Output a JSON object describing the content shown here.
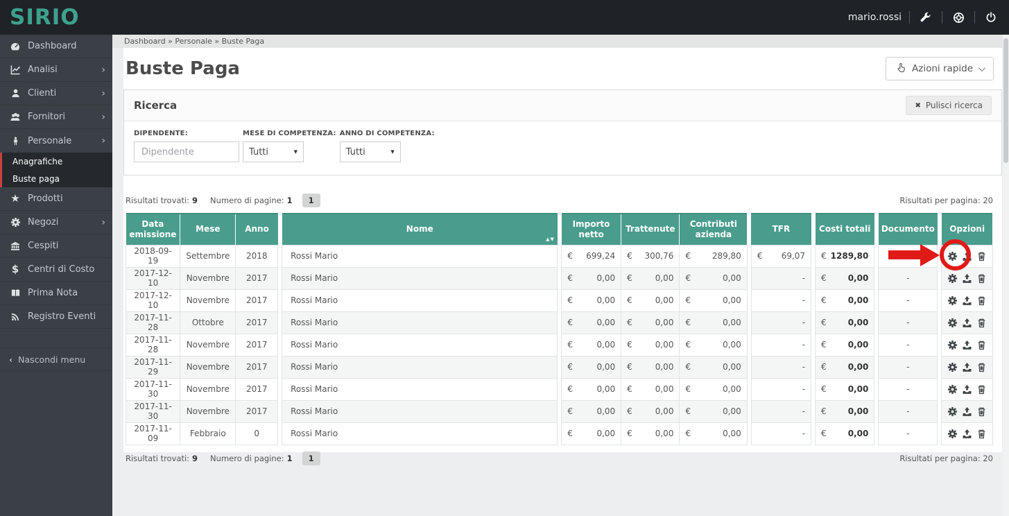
{
  "colors": {
    "brand_teal": "#3EA18D",
    "table_header": "#4A9D8D",
    "sidebar_accent_red": "#C8423F",
    "annotation_red": "#E01A17",
    "topbar_bg": "#1F2327",
    "sidebar_bg": "#3A4045"
  },
  "topbar": {
    "logo": "SIRIO",
    "username": "mario.rossi"
  },
  "breadcrumb": "Dashboard » Personale » Buste Paga",
  "icons": {
    "chevron": "›",
    "collapse": "‹",
    "dropdown": "▼",
    "clear": "✖",
    "sort": "▲▼",
    "star": "★",
    "dollar": "$"
  },
  "sidebar": {
    "items": [
      {
        "label": "Dashboard",
        "icon": "gauge",
        "chevron": false
      },
      {
        "label": "Analisi",
        "icon": "chart",
        "chevron": true
      },
      {
        "label": "Clienti",
        "icon": "user",
        "chevron": true
      },
      {
        "label": "Fornitori",
        "icon": "users",
        "chevron": true
      },
      {
        "label": "Personale",
        "icon": "person",
        "chevron": true
      },
      {
        "label": "Prodotti",
        "icon": "star",
        "chevron": false
      },
      {
        "label": "Negozi",
        "icon": "gear",
        "chevron": true
      },
      {
        "label": "Cespiti",
        "icon": "bank",
        "chevron": false
      },
      {
        "label": "Centri di Costo",
        "icon": "dollar",
        "chevron": false
      },
      {
        "label": "Prima Nota",
        "icon": "book",
        "chevron": false
      },
      {
        "label": "Registro Eventi",
        "icon": "rss",
        "chevron": false
      }
    ],
    "submenu": {
      "parent": "Personale",
      "items": [
        {
          "label": "Anagrafiche"
        },
        {
          "label": "Buste paga"
        }
      ]
    },
    "hide_label": "Nascondi menu"
  },
  "page": {
    "title": "Buste Paga",
    "quick_actions_label": "Azioni rapide"
  },
  "search": {
    "panel_title": "Ricerca",
    "clear_label": "Pulisci ricerca",
    "employee_label": "DIPENDENTE:",
    "employee_placeholder": "Dipendente",
    "employee_value": "",
    "month_label": "MESE DI COMPETENZA:",
    "month_value": "Tutti",
    "year_label": "ANNO DI COMPETENZA:",
    "year_value": "Tutti"
  },
  "results": {
    "found_label": "Risultati trovati:",
    "found_value": "9",
    "pages_label": "Numero di pagine:",
    "pages_value": "1",
    "page_button": "1",
    "per_page_label": "Risultati per pagina:",
    "per_page_value": "20"
  },
  "table": {
    "currency": "€",
    "action_icons": [
      "settings",
      "upload",
      "delete"
    ],
    "groups": [
      {
        "columns": [
          {
            "key": "date",
            "label": "Data emissione"
          },
          {
            "key": "month",
            "label": "Mese"
          },
          {
            "key": "year",
            "label": "Anno"
          }
        ]
      },
      {
        "columns": [
          {
            "key": "name",
            "label": "Nome",
            "sortable": true
          }
        ]
      },
      {
        "columns": [
          {
            "key": "net",
            "label": "Importo netto",
            "money": true
          },
          {
            "key": "withheld",
            "label": "Trattenute",
            "money": true
          },
          {
            "key": "contrib",
            "label": "Contributi azienda",
            "money": true
          }
        ]
      },
      {
        "columns": [
          {
            "key": "tfr",
            "label": "TFR",
            "money": true
          }
        ]
      },
      {
        "columns": [
          {
            "key": "total",
            "label": "Costi totali",
            "money": true,
            "bold": true
          }
        ]
      },
      {
        "columns": [
          {
            "key": "doc",
            "label": "Documento"
          }
        ]
      },
      {
        "columns": [
          {
            "key": "actions",
            "label": "Opzioni",
            "actions": true
          }
        ]
      }
    ],
    "rows": [
      {
        "date": "2018-09-19",
        "month": "Settembre",
        "year": "2018",
        "name": "Rossi Mario",
        "net": "699,24",
        "withheld": "300,76",
        "contrib": "289,80",
        "tfr": "69,07",
        "total": "1289,80",
        "doc": ""
      },
      {
        "date": "2017-12-10",
        "month": "Novembre",
        "year": "2017",
        "name": "Rossi Mario",
        "net": "0,00",
        "withheld": "0,00",
        "contrib": "0,00",
        "tfr": "-",
        "total": "0,00",
        "doc": "-"
      },
      {
        "date": "2017-12-10",
        "month": "Novembre",
        "year": "2017",
        "name": "Rossi Mario",
        "net": "0,00",
        "withheld": "0,00",
        "contrib": "0,00",
        "tfr": "-",
        "total": "0,00",
        "doc": "-"
      },
      {
        "date": "2017-11-28",
        "month": "Ottobre",
        "year": "2017",
        "name": "Rossi Mario",
        "net": "0,00",
        "withheld": "0,00",
        "contrib": "0,00",
        "tfr": "-",
        "total": "0,00",
        "doc": "-"
      },
      {
        "date": "2017-11-28",
        "month": "Novembre",
        "year": "2017",
        "name": "Rossi Mario",
        "net": "0,00",
        "withheld": "0,00",
        "contrib": "0,00",
        "tfr": "-",
        "total": "0,00",
        "doc": "-"
      },
      {
        "date": "2017-11-29",
        "month": "Novembre",
        "year": "2017",
        "name": "Rossi Mario",
        "net": "0,00",
        "withheld": "0,00",
        "contrib": "0,00",
        "tfr": "-",
        "total": "0,00",
        "doc": "-"
      },
      {
        "date": "2017-11-30",
        "month": "Novembre",
        "year": "2017",
        "name": "Rossi Mario",
        "net": "0,00",
        "withheld": "0,00",
        "contrib": "0,00",
        "tfr": "-",
        "total": "0,00",
        "doc": "-"
      },
      {
        "date": "2017-11-30",
        "month": "Novembre",
        "year": "2017",
        "name": "Rossi Mario",
        "net": "0,00",
        "withheld": "0,00",
        "contrib": "0,00",
        "tfr": "-",
        "total": "0,00",
        "doc": "-"
      },
      {
        "date": "2017-11-09",
        "month": "Febbraio",
        "year": "0",
        "name": "Rossi Mario",
        "net": "0,00",
        "withheld": "0,00",
        "contrib": "0,00",
        "tfr": "-",
        "total": "0,00",
        "doc": "-"
      }
    ]
  }
}
